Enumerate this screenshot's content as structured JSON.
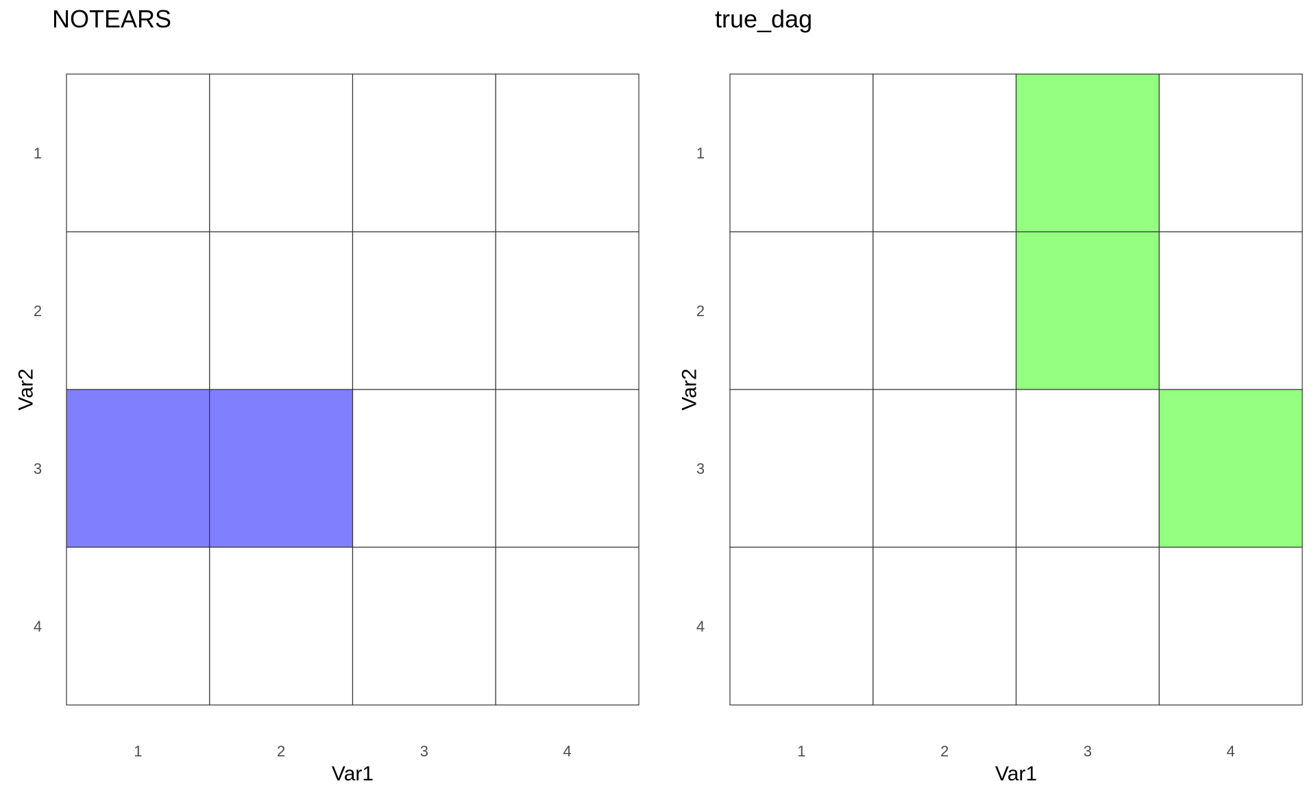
{
  "chart_data": [
    {
      "type": "heatmap",
      "title": "NOTEARS",
      "xlabel": "Var1",
      "ylabel": "Var2",
      "x_categories": [
        "1",
        "2",
        "3",
        "4"
      ],
      "y_categories": [
        "1",
        "2",
        "3",
        "4"
      ],
      "background_color": "#ffffff",
      "fill_color": "#8080ff",
      "filled_cells": [
        {
          "var1": "1",
          "var2": "3"
        },
        {
          "var1": "2",
          "var2": "3"
        }
      ]
    },
    {
      "type": "heatmap",
      "title": "true_dag",
      "xlabel": "Var1",
      "ylabel": "Var2",
      "x_categories": [
        "1",
        "2",
        "3",
        "4"
      ],
      "y_categories": [
        "1",
        "2",
        "3",
        "4"
      ],
      "background_color": "#ffffff",
      "fill_color": "#94ff80",
      "filled_cells": [
        {
          "var1": "3",
          "var2": "1"
        },
        {
          "var1": "3",
          "var2": "2"
        },
        {
          "var1": "4",
          "var2": "3"
        }
      ]
    }
  ]
}
